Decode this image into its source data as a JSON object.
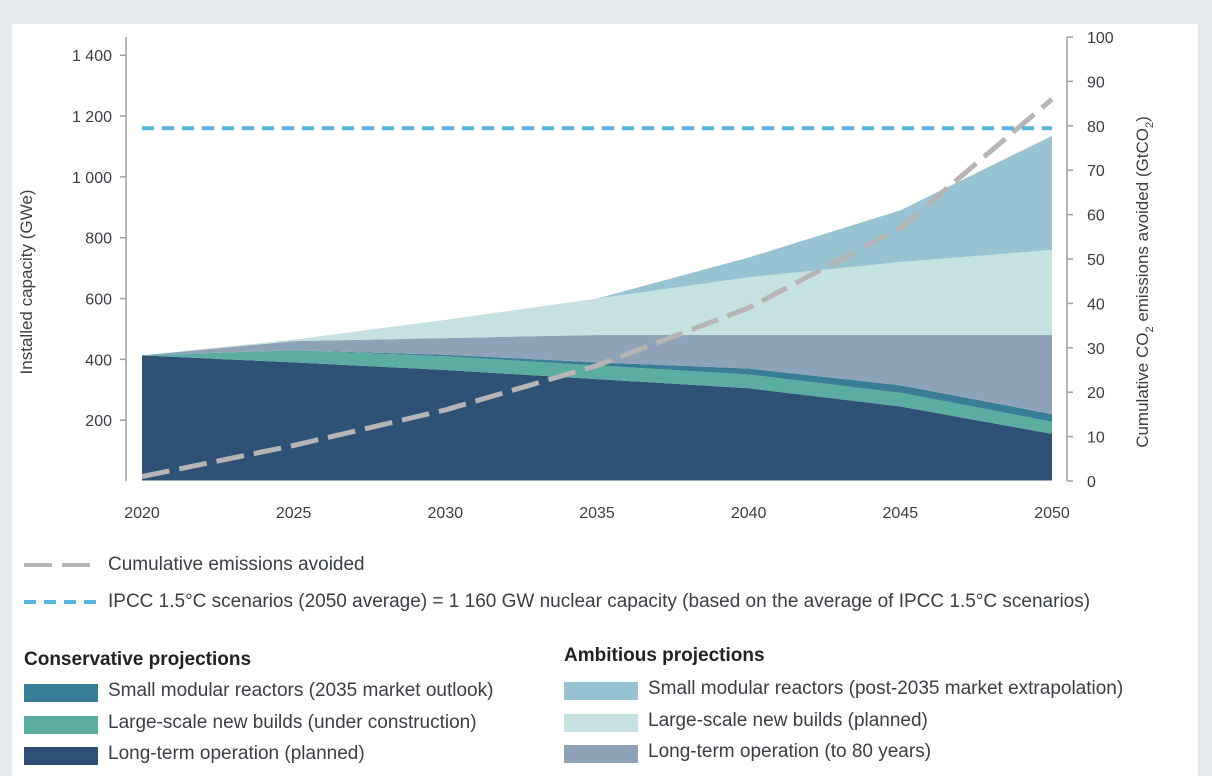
{
  "chart_data": {
    "type": "area",
    "x": [
      2020,
      2025,
      2030,
      2035,
      2040,
      2045,
      2050
    ],
    "y_left": {
      "label": "Installed capacity (GWe)",
      "ticks": [
        200,
        400,
        600,
        800,
        1000,
        1200,
        1400
      ],
      "tick_labels": [
        "200",
        "400",
        "600",
        "800",
        "1 000",
        "1 200",
        "1 400"
      ],
      "ylim": [
        0,
        1460
      ]
    },
    "y_right": {
      "label_parts": [
        "Cumulative CO",
        "2",
        " emissions avoided (GtCO",
        "2",
        ")"
      ],
      "ticks": [
        0,
        10,
        20,
        30,
        40,
        50,
        60,
        70,
        80,
        90,
        100
      ],
      "tick_labels": [
        "0",
        "10",
        "20",
        "30",
        "40",
        "50",
        "60",
        "70",
        "80",
        "90",
        "100"
      ],
      "ylim": [
        0,
        100
      ]
    },
    "x_tick_labels": [
      "2020",
      "2025",
      "2030",
      "2035",
      "2040",
      "2045",
      "2050"
    ],
    "series": [
      {
        "name": "Long-term operation (planned)",
        "group": "conservative",
        "color": "#2e5175",
        "values": [
          413,
          390,
          365,
          335,
          305,
          245,
          155
        ]
      },
      {
        "name": "Large-scale new builds (under construction)",
        "group": "conservative",
        "color": "#5aada0",
        "values": [
          0,
          40,
          45,
          45,
          45,
          45,
          40
        ]
      },
      {
        "name": "Small modular reactors (2035 market outlook)",
        "group": "conservative",
        "color": "#3a7d96",
        "values": [
          0,
          0,
          5,
          10,
          20,
          25,
          25
        ]
      },
      {
        "name": "Long-term operation (to 80 years)",
        "group": "ambitious",
        "color": "#8fa3b8",
        "values": [
          0,
          30,
          55,
          90,
          110,
          165,
          260
        ]
      },
      {
        "name": "Large-scale new builds (planned)",
        "group": "ambitious",
        "color": "#c6e1e1",
        "values": [
          0,
          5,
          60,
          120,
          190,
          240,
          280
        ]
      },
      {
        "name": "Small modular reactors (post-2035 market extrapolation)",
        "group": "ambitious",
        "color": "#98c3d2",
        "values": [
          0,
          0,
          0,
          0,
          65,
          170,
          375
        ]
      }
    ],
    "lines": [
      {
        "name": "Cumulative emissions avoided",
        "axis": "right",
        "color": "#b5b5b5",
        "values": [
          1,
          8,
          16,
          26,
          39,
          57,
          86
        ]
      },
      {
        "name": "IPCC 1.5°C scenarios (2050 average) = 1 160 GW nuclear capacity (based on the average of IPCC 1.5°C scenarios)",
        "axis": "left",
        "color": "#5ab4e0",
        "value": 1160
      }
    ]
  },
  "legend": {
    "emissions_line": "Cumulative emissions avoided",
    "ipcc_line": "IPCC 1.5°C scenarios (2050 average) = 1 160 GW nuclear capacity (based on the average of IPCC 1.5°C scenarios)",
    "conservative_title": "Conservative projections",
    "ambitious_title": "Ambitious projections",
    "conservative_items": [
      {
        "label": "Small modular reactors (2035 market outlook)",
        "color": "#3a7d96"
      },
      {
        "label": "Large-scale new builds (under construction)",
        "color": "#5aada0"
      },
      {
        "label": "Long-term operation (planned)",
        "color": "#2e5175"
      }
    ],
    "ambitious_items": [
      {
        "label": "Small modular reactors (post-2035 market extrapolation)",
        "color": "#98c3d2"
      },
      {
        "label": "Large-scale new builds (planned)",
        "color": "#c6e1e1"
      },
      {
        "label": "Long-term operation (to 80 years)",
        "color": "#8fa3b8"
      }
    ]
  }
}
